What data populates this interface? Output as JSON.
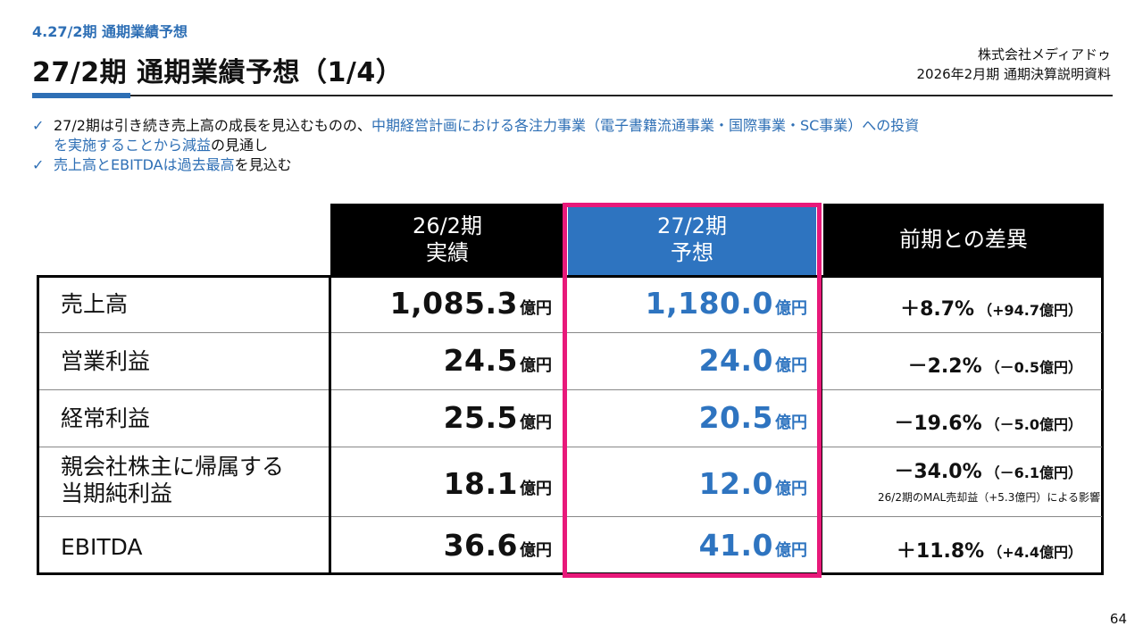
{
  "header": {
    "section": "4.27/2期 通期業績予想",
    "title": "27/2期 通期業績予想（1/4）",
    "company": "株式会社メディアドゥ",
    "doc": "2026年2月期 通期決算説明資料"
  },
  "bullets": {
    "b1_a": "27/2期は引き続き売上高の成長を見込むものの、",
    "b1_b": "中期経営計画における各注力事業（電子書籍流通事業・国際事業・SC事業）への投資",
    "b1_c": "を実施することから減益",
    "b1_d": "の見通し",
    "b2_a": "売上高とEBITDAは過去最高",
    "b2_b": "を見込む"
  },
  "table": {
    "headers": {
      "prev_l1": "26/2期",
      "prev_l2": "実績",
      "fcst_l1": "27/2期",
      "fcst_l2": "予想",
      "diff": "前期との差異"
    },
    "unit": "億円",
    "rows": [
      {
        "label": "売上高",
        "prev": "1,085.3",
        "fcst": "1,180.0",
        "pct": "＋8.7%",
        "amt": "（+94.7億円）"
      },
      {
        "label": "営業利益",
        "prev": "24.5",
        "fcst": "24.0",
        "pct": "－2.2%",
        "amt": "（－0.5億円）"
      },
      {
        "label": "経常利益",
        "prev": "25.5",
        "fcst": "20.5",
        "pct": "－19.6%",
        "amt": "（－5.0億円）"
      },
      {
        "label_l1": "親会社株主に帰属する",
        "label_l2": "当期純利益",
        "prev": "18.1",
        "fcst": "12.0",
        "pct": "－34.0%",
        "amt": "（－6.1億円）",
        "note": "26/2期のMAL売却益（+5.3億円）による影響"
      },
      {
        "label": "EBITDA",
        "prev": "36.6",
        "fcst": "41.0",
        "pct": "＋11.8%",
        "amt": "（+4.4億円）"
      }
    ]
  },
  "page_number": "64"
}
